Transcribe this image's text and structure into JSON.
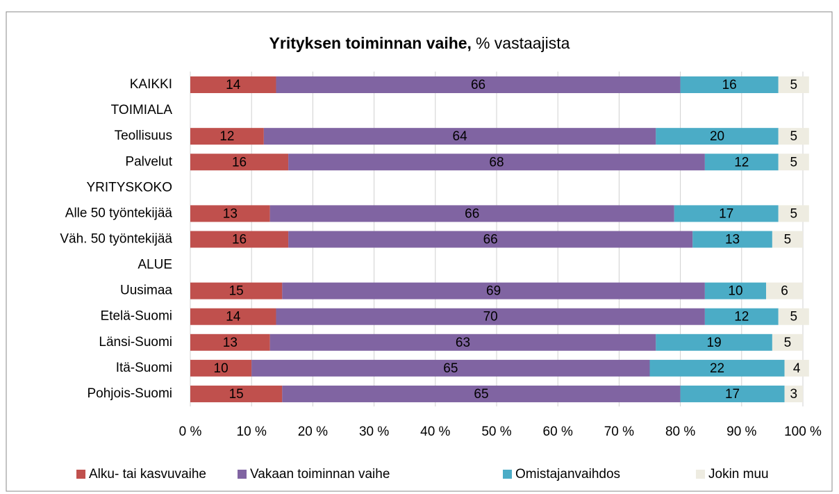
{
  "chart_data": {
    "type": "stacked_bar_horizontal",
    "title": "Yrityksen toiminnan vaihe,",
    "subtitle": "% vastaajista",
    "categories": [
      "KAIKKI",
      "TOIMIALA",
      "Teollisuus",
      "Palvelut",
      "YRITYSKOKO",
      "Alle 50 työntekijää",
      "Väh. 50 työntekijää",
      "ALUE",
      "Uusimaa",
      "Etelä-Suomi",
      "Länsi-Suomi",
      "Itä-Suomi",
      "Pohjois-Suomi"
    ],
    "series": [
      {
        "name": "Alku- tai kasvuvaihe",
        "color": "#c0504d",
        "values": [
          14,
          null,
          12,
          16,
          null,
          13,
          16,
          null,
          15,
          14,
          13,
          10,
          15
        ]
      },
      {
        "name": "Vakaan toiminnan vaihe",
        "color": "#8064a2",
        "values": [
          66,
          null,
          64,
          68,
          null,
          66,
          66,
          null,
          69,
          70,
          63,
          65,
          65
        ]
      },
      {
        "name": "Omistajanvaihdos",
        "color": "#4bacc6",
        "values": [
          16,
          null,
          20,
          12,
          null,
          17,
          13,
          null,
          10,
          12,
          19,
          22,
          17
        ]
      },
      {
        "name": "Jokin muu",
        "color": "#eeece1",
        "values": [
          5,
          null,
          5,
          5,
          null,
          5,
          5,
          null,
          6,
          5,
          5,
          4,
          3
        ]
      }
    ],
    "xlim": [
      0,
      100
    ],
    "xticks": [
      {
        "value": 0,
        "label": "0 %"
      },
      {
        "value": 10,
        "label": "10 %"
      },
      {
        "value": 20,
        "label": "20 %"
      },
      {
        "value": 30,
        "label": "30 %"
      },
      {
        "value": 40,
        "label": "40 %"
      },
      {
        "value": 50,
        "label": "50 %"
      },
      {
        "value": 60,
        "label": "60 %"
      },
      {
        "value": 70,
        "label": "70 %"
      },
      {
        "value": 80,
        "label": "80 %"
      },
      {
        "value": 90,
        "label": "90 %"
      },
      {
        "value": 100,
        "label": "100 %"
      }
    ],
    "grid": true,
    "legend": "bottom"
  }
}
